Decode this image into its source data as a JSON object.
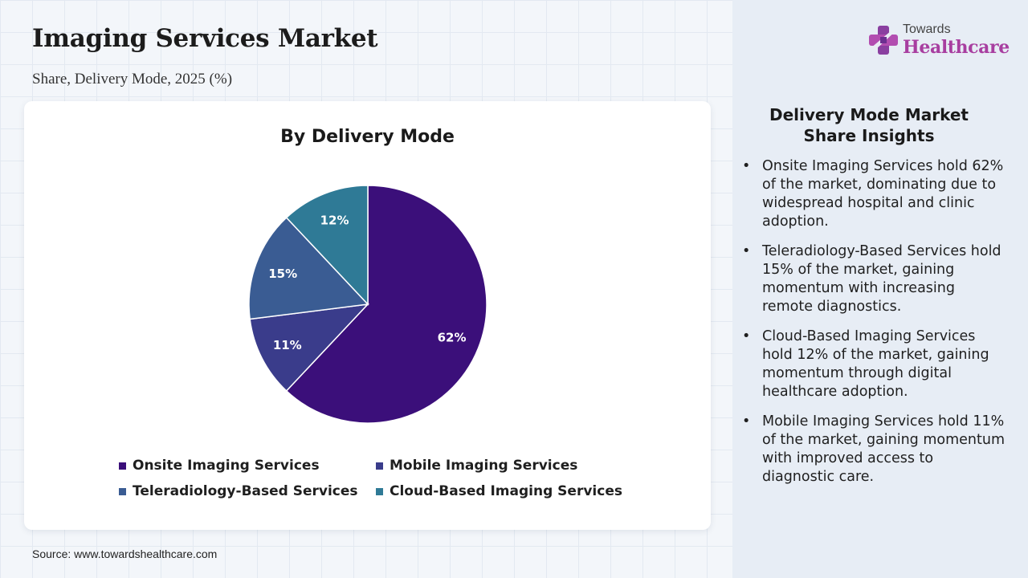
{
  "header": {
    "title": "Imaging Services Market",
    "subtitle": "Share, Delivery Mode, 2025 (%)"
  },
  "logo": {
    "small_text": "Towards",
    "big_text": "Healthcare"
  },
  "chart_data": {
    "type": "pie",
    "title": "By Delivery Mode",
    "categories": [
      "Onsite Imaging Services",
      "Mobile Imaging Services",
      "Teleradiology-Based Services",
      "Cloud-Based Imaging Services"
    ],
    "values": [
      62,
      11,
      15,
      12
    ],
    "labels": [
      "62%",
      "11%",
      "15%",
      "12%"
    ],
    "colors": [
      "#3b0f7a",
      "#3a3c8b",
      "#3a5c93",
      "#2f7a96"
    ],
    "legend_placement": "bottom"
  },
  "insights": {
    "title": "Delivery Mode Market Share Insights",
    "items": [
      "Onsite Imaging Services hold 62% of the market, dominating due to widespread hospital and clinic adoption.",
      "Teleradiology-Based Services hold 15% of the market, gaining momentum with increasing remote diagnostics.",
      "Cloud-Based Imaging Services hold 12% of the market, gaining momentum through digital healthcare adoption.",
      "Mobile Imaging Services hold 11% of the market, gaining momentum with improved access to diagnostic care."
    ]
  },
  "footer": {
    "source": "Source: www.towardshealthcare.com"
  }
}
